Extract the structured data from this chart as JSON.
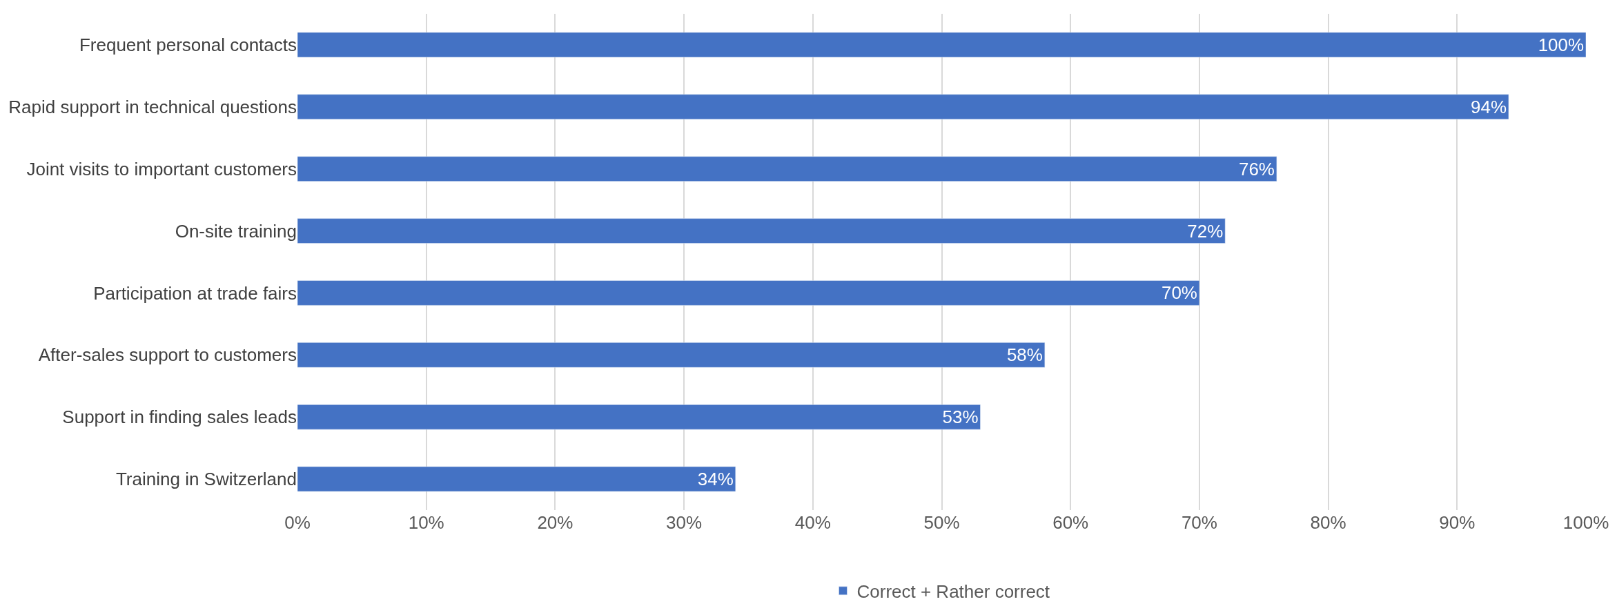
{
  "chart_data": {
    "type": "bar",
    "orientation": "horizontal",
    "categories": [
      "Frequent personal contacts",
      "Rapid support in technical questions",
      "Joint visits to important customers",
      "On-site training",
      "Participation at trade fairs",
      "After-sales support to customers",
      "Support in finding sales leads",
      "Training in Switzerland"
    ],
    "series": [
      {
        "name": "Correct + Rather correct",
        "color": "#4472c4",
        "values": [
          100,
          94,
          76,
          72,
          70,
          58,
          53,
          34
        ],
        "value_labels": [
          "100%",
          "94%",
          "76%",
          "72%",
          "70%",
          "58%",
          "53%",
          "34%"
        ]
      }
    ],
    "xlim": [
      0,
      100
    ],
    "xticks": [
      {
        "value": 0,
        "label": "0%"
      },
      {
        "value": 10,
        "label": "10%"
      },
      {
        "value": 20,
        "label": "20%"
      },
      {
        "value": 30,
        "label": "30%"
      },
      {
        "value": 40,
        "label": "40%"
      },
      {
        "value": 50,
        "label": "50%"
      },
      {
        "value": 60,
        "label": "60%"
      },
      {
        "value": 70,
        "label": "70%"
      },
      {
        "value": 80,
        "label": "80%"
      },
      {
        "value": 90,
        "label": "90%"
      },
      {
        "value": 100,
        "label": "100%"
      }
    ],
    "grid": "x",
    "legend": "bottom"
  }
}
